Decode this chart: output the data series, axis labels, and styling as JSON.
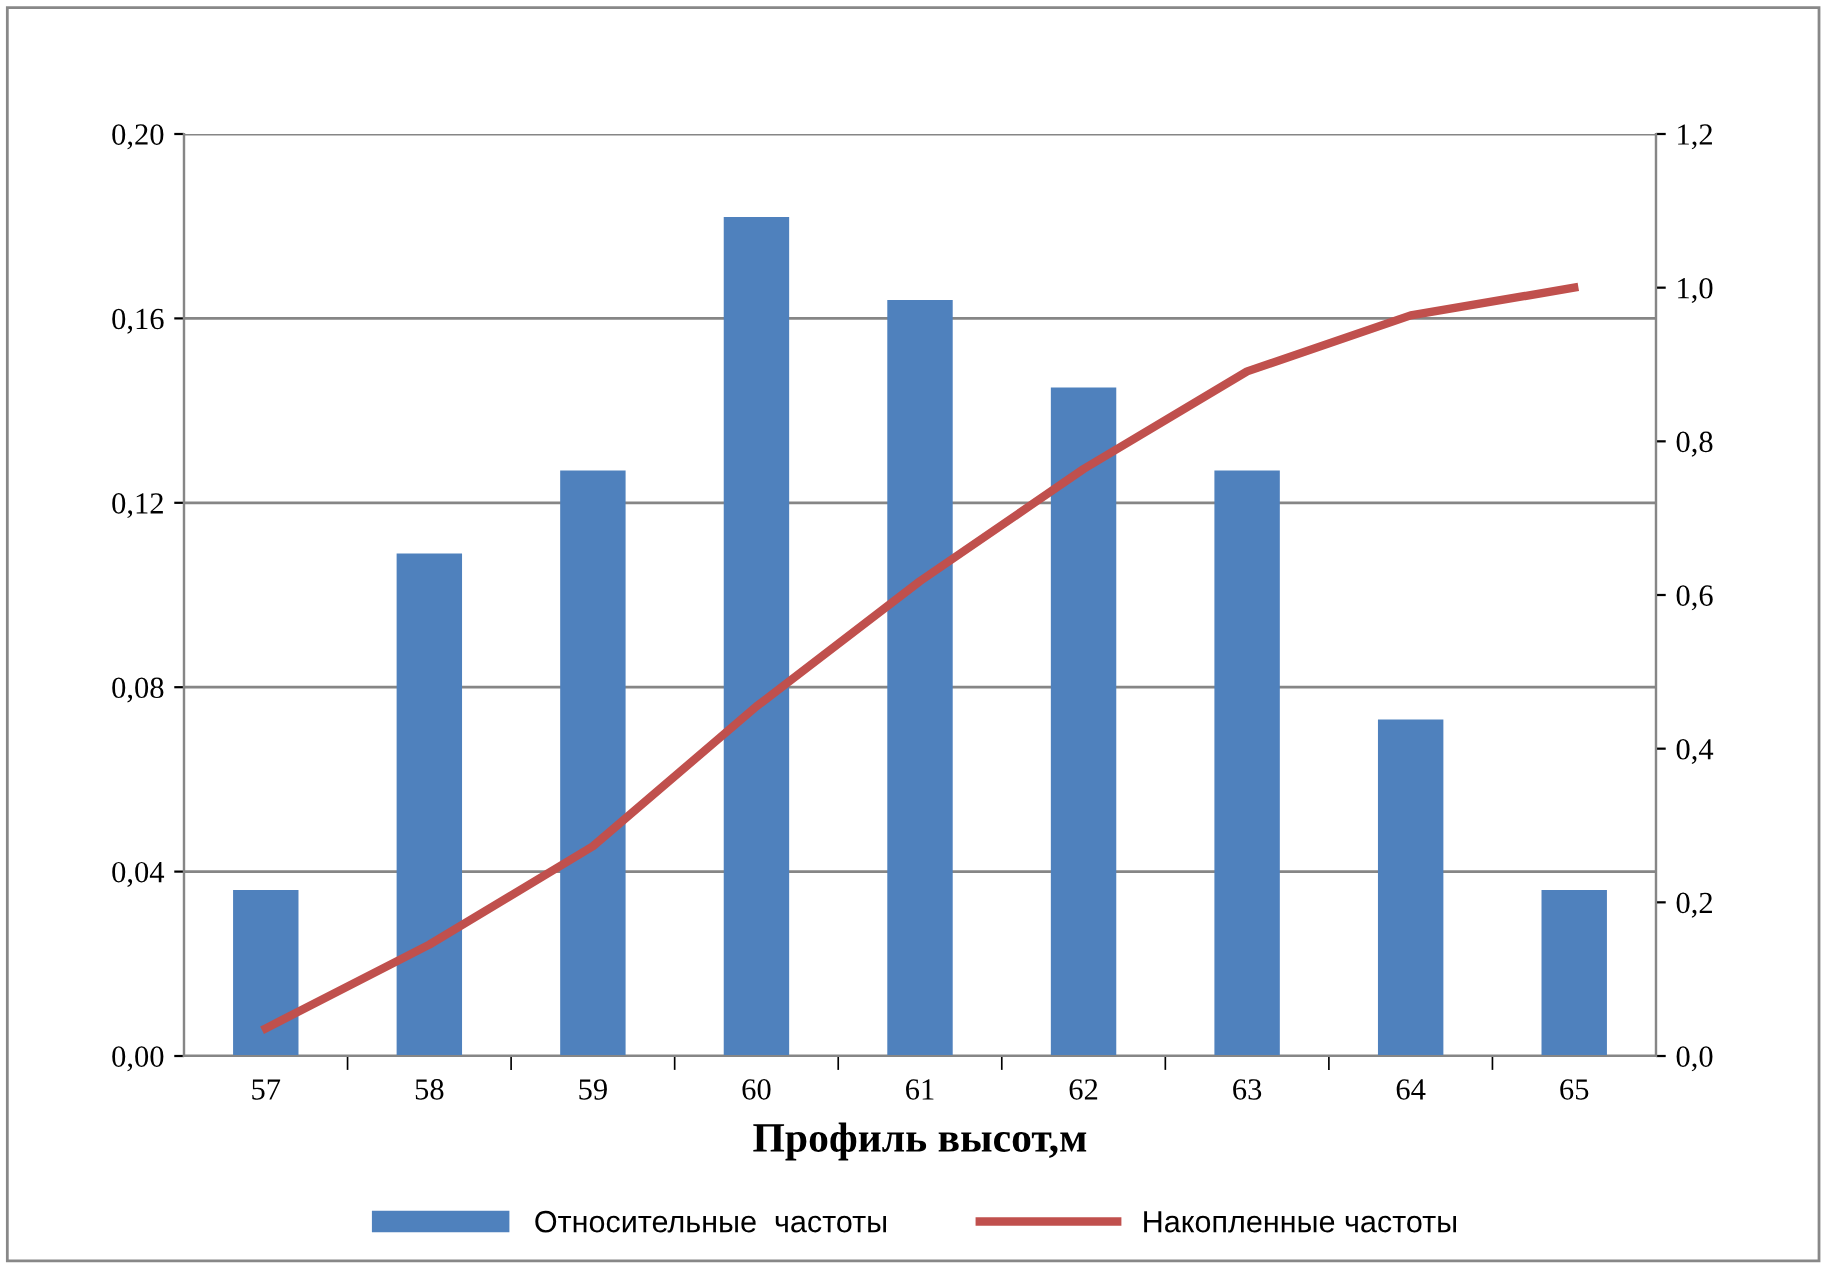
{
  "chart_data": {
    "type": "bar",
    "xlabel": "Профиль высот,м",
    "categories": [
      "57",
      "58",
      "59",
      "60",
      "61",
      "62",
      "63",
      "64",
      "65"
    ],
    "series": [
      {
        "name": "Относительные  частоты",
        "color": "#4f81bd",
        "values": [
          0.036,
          0.109,
          0.127,
          0.182,
          0.164,
          0.145,
          0.127,
          0.073,
          0.036
        ]
      },
      {
        "name": "Накопленные частоты",
        "type": "line",
        "axis": "y2",
        "color": "#c0504d",
        "values": [
          0.036,
          0.145,
          0.273,
          0.455,
          0.618,
          0.764,
          0.891,
          0.964,
          1.0
        ]
      }
    ],
    "ylim": [
      0,
      0.2
    ],
    "yticks": [
      {
        "value": 0,
        "label": "0,00"
      },
      {
        "value": 0.04,
        "label": "0,04"
      },
      {
        "value": 0.08,
        "label": "0,08"
      },
      {
        "value": 0.12,
        "label": "0,12"
      },
      {
        "value": 0.16,
        "label": "0,16"
      },
      {
        "value": 0.2,
        "label": "0,20"
      }
    ],
    "y2lim": [
      0,
      1.2
    ],
    "y2ticks": [
      {
        "value": 0,
        "label": "0,0"
      },
      {
        "value": 0.2,
        "label": "0,2"
      },
      {
        "value": 0.4,
        "label": "0,4"
      },
      {
        "value": 0.6,
        "label": "0,6"
      },
      {
        "value": 0.8,
        "label": "0,8"
      },
      {
        "value": 1.0,
        "label": "1,0"
      },
      {
        "value": 1.2,
        "label": "1,2"
      }
    ],
    "grid": "y",
    "legend": "bottom",
    "marker": "none",
    "line_style": "solid"
  }
}
